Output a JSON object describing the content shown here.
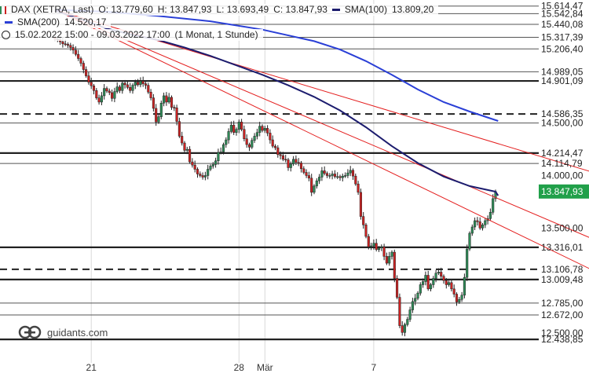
{
  "header": {
    "instrument": "DAX (XETRA, Last)",
    "open": "O: 13.779,60",
    "high": "H: 13.847,93",
    "low": "L: 13.693,49",
    "close": "C: 13.847,93",
    "sma100_label": "SMA(100)",
    "sma100_value": "13.809,20",
    "sma200_label": "SMA(200)",
    "sma200_value": "14.520,17",
    "range": "15.02.2022 15:00 - 09.03.2022 17:00",
    "interval": "(1 Monat, 1 Stunde)"
  },
  "logo": {
    "text": "guidants.com"
  },
  "colors": {
    "sma100": "#1c1c6e",
    "sma200": "#2a3fd6",
    "trend": "#e41e1e",
    "up": "#2e8b57",
    "down": "#cc2222",
    "current_price_bg": "#21a04a"
  },
  "chart_data": {
    "type": "candlestick",
    "y_range": [
      12380,
      15650
    ],
    "x_ticks": [
      {
        "label": "21",
        "bar": 14
      },
      {
        "label": "28",
        "bar": 71
      },
      {
        "label": "Mär",
        "bar": 81
      },
      {
        "label": "7",
        "bar": 123
      }
    ],
    "price_labels": [
      {
        "value": 15614.47,
        "label": "15.614,47",
        "line": "solid"
      },
      {
        "value": 15542.84,
        "label": "15.542,84",
        "line": "solid"
      },
      {
        "value": 15440.08,
        "label": "15.440,08",
        "line": "solid"
      },
      {
        "value": 15317.39,
        "label": "15.317,39",
        "line": "solid"
      },
      {
        "value": 15206.4,
        "label": "15.206,40",
        "line": "solid"
      },
      {
        "value": 14989.05,
        "label": "14.989,05",
        "line": "solid"
      },
      {
        "value": 14901.09,
        "label": "14.901,09",
        "line": "bold"
      },
      {
        "value": 14586.35,
        "label": "14.586,35",
        "line": "dashed"
      },
      {
        "value": 14500.0,
        "label": "14.500,00",
        "line": "solid"
      },
      {
        "value": 14214.47,
        "label": "14.214,47",
        "line": "bold"
      },
      {
        "value": 14114.79,
        "label": "14.114,79",
        "line": "solid"
      },
      {
        "value": 14000.0,
        "label": "14.000,00",
        "line": "none"
      },
      {
        "value": 13500.0,
        "label": "13.500,00",
        "line": "none"
      },
      {
        "value": 13316.01,
        "label": "13.316,01",
        "line": "bold"
      },
      {
        "value": 13106.78,
        "label": "13.106,78",
        "line": "dashed"
      },
      {
        "value": 13009.48,
        "label": "13.009,48",
        "line": "bold"
      },
      {
        "value": 12785.0,
        "label": "12.785,00",
        "line": "solid"
      },
      {
        "value": 12672.0,
        "label": "12.672,00",
        "line": "solid"
      },
      {
        "value": 12500.0,
        "label": "12.500,00",
        "line": "none"
      },
      {
        "value": 12438.85,
        "label": "12.438,85",
        "line": "bold"
      }
    ],
    "current_price": {
      "value": 13847.93,
      "label": "13.847,93"
    },
    "candles_close": [
      15300,
      15295,
      15275,
      15255,
      15250,
      15240,
      15220,
      15195,
      15155,
      15115,
      15070,
      15010,
      14950,
      14890,
      14855,
      14810,
      14740,
      14700,
      14760,
      14830,
      14805,
      14790,
      14735,
      14800,
      14845,
      14810,
      14880,
      14865,
      14840,
      14810,
      14860,
      14890,
      14865,
      14900,
      14875,
      14860,
      14795,
      14740,
      14640,
      14510,
      14560,
      14690,
      14760,
      14700,
      14745,
      14650,
      14645,
      14515,
      14375,
      14310,
      14240,
      14250,
      14130,
      14100,
      14060,
      14015,
      14000,
      13985,
      14000,
      14060,
      14090,
      14105,
      14140,
      14220,
      14225,
      14295,
      14340,
      14420,
      14480,
      14410,
      14440,
      14510,
      14440,
      14350,
      14295,
      14270,
      14335,
      14375,
      14410,
      14470,
      14430,
      14450,
      14405,
      14340,
      14280,
      14265,
      14200,
      14190,
      14155,
      14150,
      14075,
      14110,
      14155,
      14125,
      14120,
      14065,
      14030,
      14000,
      13975,
      13840,
      13900,
      13950,
      13985,
      14045,
      14020,
      14000,
      14000,
      14015,
      13990,
      13990,
      13980,
      13995,
      14000,
      14025,
      14050,
      13995,
      13920,
      13840,
      13610,
      13530,
      13420,
      13320,
      13330,
      13355,
      13295,
      13310,
      13320,
      13230,
      13165,
      13230,
      13270,
      13020,
      12840,
      12570,
      12505,
      12580,
      12630,
      12720,
      12800,
      12830,
      12880,
      12960,
      12990,
      13050,
      12920,
      12960,
      13020,
      13070,
      13080,
      13040,
      13000,
      12960,
      12980,
      12920,
      12870,
      12795,
      12820,
      12860,
      13030,
      13300,
      13450,
      13510,
      13570,
      13560,
      13500,
      13530,
      13570,
      13590,
      13650,
      13780,
      13848
    ],
    "sma100": [
      [
        0,
        15570
      ],
      [
        10,
        15490
      ],
      [
        20,
        15400
      ],
      [
        30,
        15340
      ],
      [
        40,
        15290
      ],
      [
        50,
        15220
      ],
      [
        60,
        15140
      ],
      [
        70,
        15050
      ],
      [
        80,
        14960
      ],
      [
        90,
        14860
      ],
      [
        100,
        14750
      ],
      [
        110,
        14620
      ],
      [
        120,
        14460
      ],
      [
        130,
        14280
      ],
      [
        140,
        14120
      ],
      [
        150,
        13990
      ],
      [
        160,
        13900
      ],
      [
        170,
        13847
      ],
      [
        171,
        13809
      ]
    ],
    "sma200": [
      [
        0,
        15580
      ],
      [
        20,
        15560
      ],
      [
        40,
        15520
      ],
      [
        60,
        15470
      ],
      [
        80,
        15390
      ],
      [
        100,
        15280
      ],
      [
        110,
        15200
      ],
      [
        120,
        15090
      ],
      [
        130,
        14960
      ],
      [
        140,
        14820
      ],
      [
        150,
        14700
      ],
      [
        160,
        14610
      ],
      [
        171,
        14520
      ]
    ],
    "trendlines": [
      {
        "from": [
          0,
          15580
        ],
        "to": [
          209,
          14020
        ]
      },
      {
        "from": [
          0,
          15580
        ],
        "to": [
          209,
          13380
        ]
      },
      {
        "from": [
          0,
          15580
        ],
        "to": [
          209,
          13080
        ]
      }
    ]
  }
}
